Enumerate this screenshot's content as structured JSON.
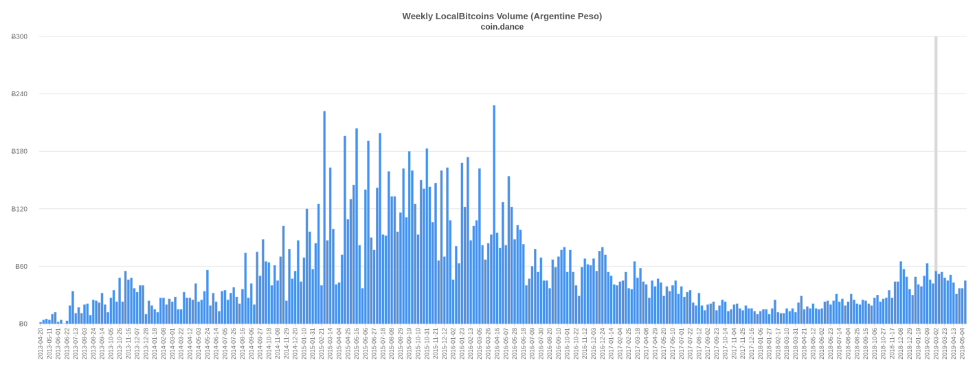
{
  "chart_data": {
    "type": "bar",
    "title": "Weekly LocalBitcoins Volume (Argentine Peso)",
    "subtitle": "coin.dance",
    "xlabel": "",
    "ylabel": "",
    "ylim": [
      0,
      300
    ],
    "y_ticks": [
      0,
      60,
      120,
      180,
      240,
      300
    ],
    "y_tick_prefix": "Ƀ",
    "grid": true,
    "bar_color": "#4590ef",
    "highlight_color": "#d9d9d9",
    "highlighted_bar_index": 306,
    "x_tick_labels": [
      "2013-04-20",
      "2013-05-11",
      "2013-06-01",
      "2013-06-22",
      "2013-07-13",
      "2013-08-03",
      "2013-08-24",
      "2013-09-14",
      "2013-10-05",
      "2013-10-26",
      "2013-11-16",
      "2013-12-07",
      "2013-12-28",
      "2014-01-18",
      "2014-02-08",
      "2014-03-01",
      "2014-03-22",
      "2014-04-12",
      "2014-05-03",
      "2014-05-24",
      "2014-06-14",
      "2014-07-05",
      "2014-07-26",
      "2014-08-16",
      "2014-09-06",
      "2014-09-27",
      "2014-10-18",
      "2014-11-08",
      "2014-11-29",
      "2014-12-20",
      "2015-01-10",
      "2015-01-31",
      "2015-02-21",
      "2015-03-14",
      "2015-04-04",
      "2015-04-25",
      "2015-05-16",
      "2015-06-06",
      "2015-06-27",
      "2015-07-18",
      "2015-08-08",
      "2015-08-29",
      "2015-09-19",
      "2015-10-10",
      "2015-10-31",
      "2015-11-21",
      "2015-12-12",
      "2016-01-02",
      "2016-01-23",
      "2016-02-13",
      "2016-03-05",
      "2016-03-26",
      "2016-04-16",
      "2016-05-07",
      "2016-05-28",
      "2016-06-18",
      "2016-07-09",
      "2016-07-30",
      "2016-08-20",
      "2016-09-10",
      "2016-10-01",
      "2016-10-22",
      "2016-11-12",
      "2016-12-03",
      "2016-12-24",
      "2017-01-14",
      "2017-02-04",
      "2017-02-25",
      "2017-03-18",
      "2017-04-08",
      "2017-04-29",
      "2017-05-20",
      "2017-06-10",
      "2017-07-01",
      "2017-07-22",
      "2017-08-12",
      "2017-09-02",
      "2017-09-23",
      "2017-10-14",
      "2017-11-04",
      "2017-11-25",
      "2017-12-16",
      "2018-01-06",
      "2018-01-27",
      "2018-02-17",
      "2018-03-10",
      "2018-03-31",
      "2018-04-21",
      "2018-05-12",
      "2018-06-02",
      "2018-06-23",
      "2018-07-14",
      "2018-08-04",
      "2018-08-25",
      "2018-09-15",
      "2018-10-06",
      "2018-10-27",
      "2018-11-17",
      "2018-12-08",
      "2018-12-29",
      "2019-01-19",
      "2019-02-09",
      "2019-03-02",
      "2019-03-23",
      "2019-04-13",
      "2019-05-04"
    ],
    "values": [
      1.7,
      4,
      5,
      4,
      10,
      12,
      2,
      4,
      0,
      3,
      19,
      34,
      11,
      17,
      11,
      20,
      21,
      9,
      25,
      24,
      22,
      32,
      20,
      12,
      27,
      35,
      23,
      48,
      23,
      55,
      46,
      48,
      37,
      33,
      40,
      40,
      10,
      24,
      19,
      15,
      12,
      27,
      27,
      20,
      26,
      23,
      28,
      15,
      15,
      33,
      27,
      27,
      25,
      42,
      23,
      25,
      34,
      56,
      19,
      32,
      23,
      13,
      34,
      35,
      25,
      32,
      38,
      28,
      21,
      36,
      74,
      27,
      42,
      20,
      75,
      50,
      88,
      65,
      64,
      40,
      61,
      45,
      70,
      102,
      24,
      78,
      47,
      55,
      87,
      44,
      69,
      120,
      96,
      57,
      84,
      125,
      40,
      222,
      87,
      163,
      99,
      41,
      43,
      72,
      196,
      109,
      130,
      145,
      204,
      82,
      37,
      140,
      191,
      90,
      77,
      142,
      199,
      93,
      92,
      159,
      133,
      133,
      96,
      116,
      162,
      111,
      180,
      160,
      125,
      93,
      150,
      141,
      183,
      143,
      106,
      147,
      66,
      160,
      70,
      163,
      108,
      46,
      81,
      63,
      168,
      122,
      174,
      87,
      102,
      108,
      162,
      82,
      67,
      84,
      93,
      228,
      95,
      79,
      127,
      82,
      154,
      122,
      88,
      103,
      98,
      83,
      40,
      47,
      60,
      78,
      54,
      69,
      45,
      45,
      37,
      67,
      59,
      70,
      77,
      80,
      54,
      77,
      54,
      40,
      29,
      59,
      68,
      62,
      61,
      68,
      55,
      76,
      80,
      72,
      54,
      50,
      41,
      40,
      44,
      45,
      54,
      37,
      36,
      65,
      48,
      58,
      44,
      41,
      27,
      45,
      39,
      47,
      43,
      29,
      39,
      34,
      40,
      45,
      31,
      39,
      28,
      33,
      35,
      22,
      19,
      32,
      19,
      14,
      20,
      21,
      23,
      14,
      19,
      25,
      23,
      13,
      15,
      20,
      21,
      16,
      14,
      19,
      16,
      16,
      13,
      10,
      13,
      15,
      15,
      10,
      16,
      25,
      12,
      11,
      11,
      16,
      13,
      16,
      12,
      22,
      29,
      15,
      18,
      16,
      21,
      16,
      15,
      16,
      23,
      24,
      20,
      24,
      31,
      23,
      26,
      19,
      23,
      31,
      25,
      21,
      20,
      25,
      24,
      21,
      19,
      27,
      30,
      23,
      26,
      27,
      35,
      27,
      44,
      44,
      65,
      57,
      49,
      36,
      30,
      49,
      41,
      39,
      50,
      63,
      46,
      42,
      55,
      52,
      54,
      48,
      45,
      51,
      43,
      31,
      37,
      37,
      45
    ]
  }
}
